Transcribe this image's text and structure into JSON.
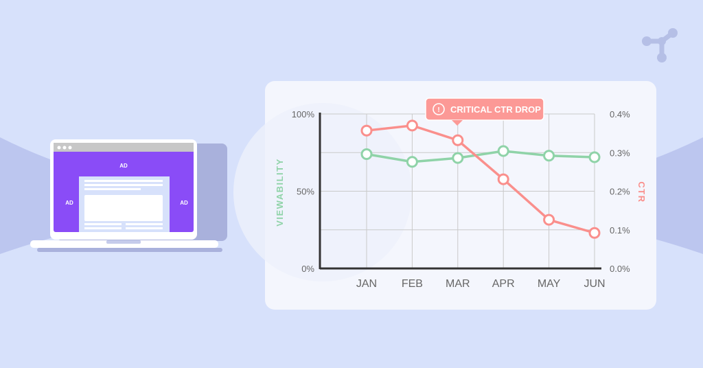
{
  "laptop": {
    "ad_label": "AD"
  },
  "chart_data": {
    "type": "line",
    "categories": [
      "JAN",
      "FEB",
      "MAR",
      "APR",
      "MAY",
      "JUN"
    ],
    "series": [
      {
        "name": "VIEWABILITY",
        "axis": "left",
        "color": "#8fd3a8",
        "values": [
          74,
          69,
          71.5,
          76,
          73,
          72
        ]
      },
      {
        "name": "CTR",
        "axis": "right",
        "color": "#fa8f8c",
        "values": [
          0.357,
          0.37,
          0.332,
          0.231,
          0.126,
          0.092
        ]
      }
    ],
    "ylabel": "VIEWABILITY",
    "y2label": "CTR",
    "ylim": [
      0,
      100
    ],
    "y2lim": [
      0,
      0.4
    ],
    "yticks": [
      "0%",
      "50%",
      "100%"
    ],
    "y2ticks": [
      "0.0%",
      "0.1%",
      "0.2%",
      "0.3%",
      "0.4%"
    ],
    "annotation": "CRITICAL CTR DROP",
    "grid": true
  }
}
